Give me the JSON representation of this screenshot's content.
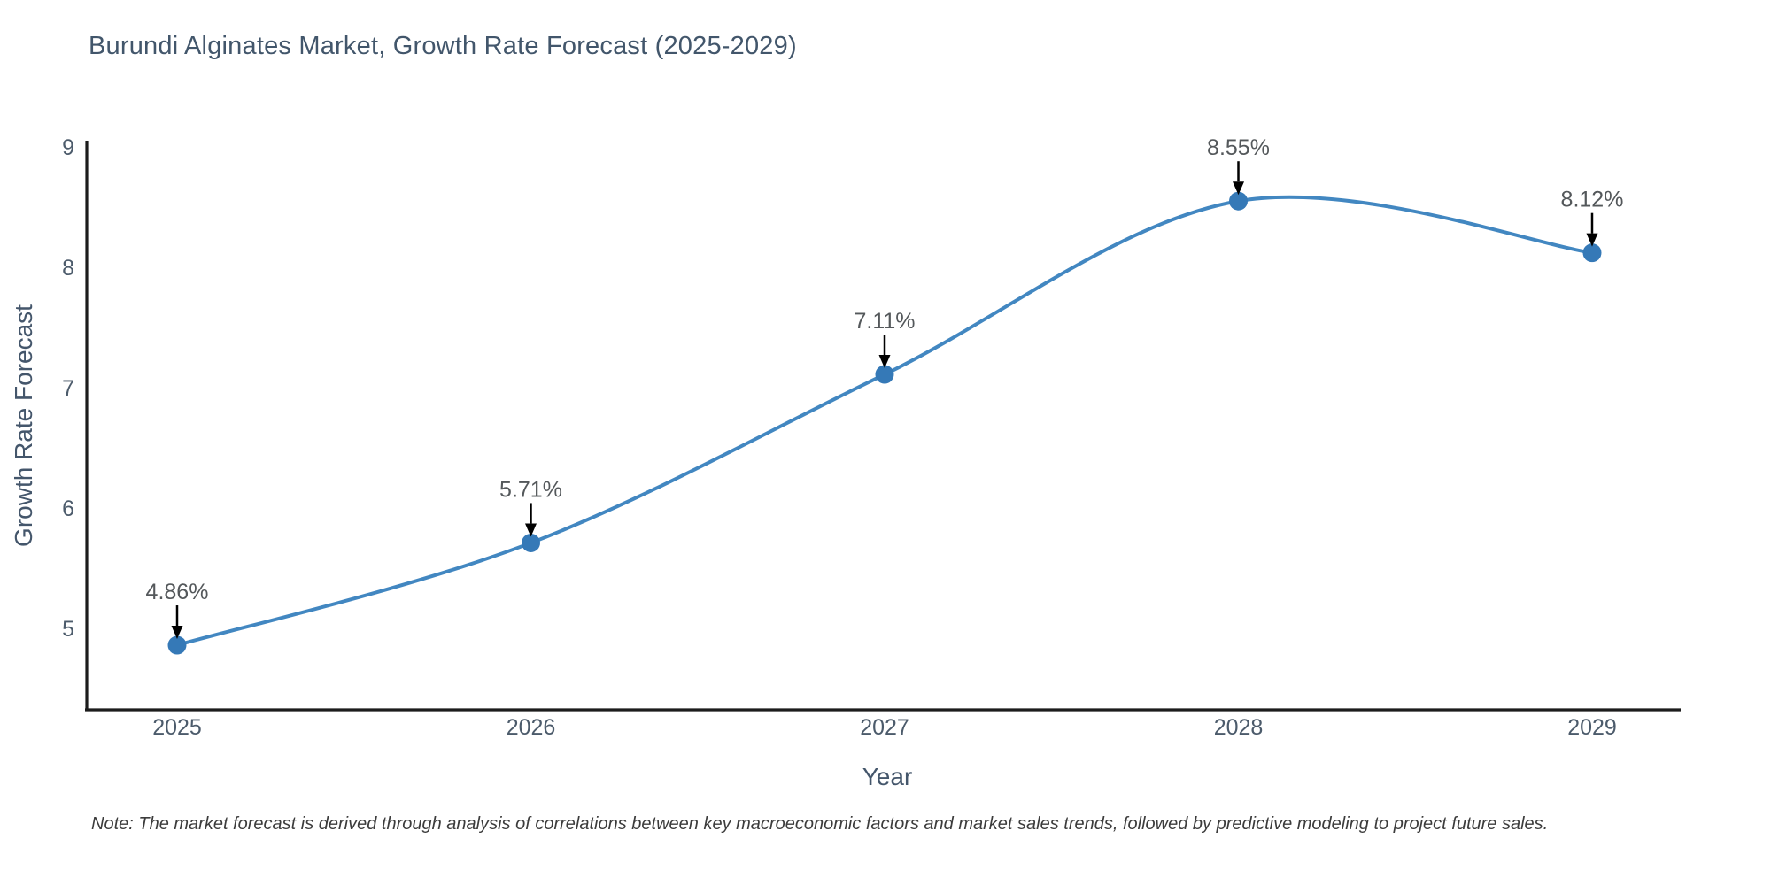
{
  "chart_data": {
    "type": "line",
    "title": "Burundi Alginates Market, Growth Rate Forecast (2025-2029)",
    "x": [
      "2025",
      "2026",
      "2027",
      "2028",
      "2029"
    ],
    "values": [
      4.86,
      5.71,
      7.11,
      8.55,
      8.12
    ],
    "point_labels": [
      "4.86%",
      "5.71%",
      "7.11%",
      "8.55%",
      "8.12%"
    ],
    "xlabel": "Year",
    "ylabel": "Growth Rate Forecast",
    "yticks": [
      "5",
      "6",
      "7",
      "8",
      "9"
    ],
    "ylim": [
      4.3,
      9.05
    ],
    "line_shape": "spline",
    "grid": false,
    "legend": "none",
    "markers": true,
    "annotation_arrows": true,
    "note": "Note: The market forecast is derived through analysis of correlations between key macroeconomic factors and market sales trends, followed by predictive modeling to project future sales.",
    "colors": {
      "line": "#4287c1",
      "marker": "#3579b7",
      "axis": "#1c1c1c",
      "arrow": "#000000",
      "title": "#42566b",
      "axis_title": "#44566b",
      "tick": "#4c5b6b",
      "annotation": "#54585b",
      "note": "#3c3c3c",
      "background": "#ffffff"
    }
  }
}
